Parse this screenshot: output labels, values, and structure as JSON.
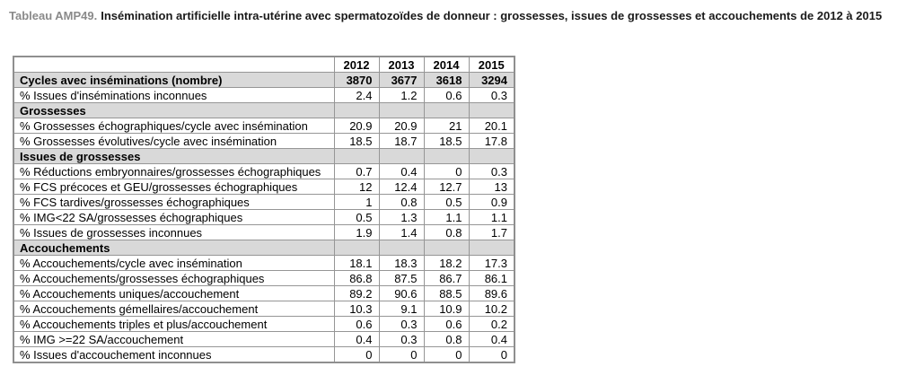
{
  "title": {
    "prefix": "Tableau AMP49.",
    "text": "Insémination artificielle intra-utérine avec spermatozoïdes de donneur : grossesses, issues de grossesses et accouchements de 2012 à 2015"
  },
  "colors": {
    "section_row_bg": "#d9d9d9",
    "table_border": "#969696",
    "caption_prefix": "#8a8a8a",
    "text": "#000000"
  },
  "table": {
    "year_columns": [
      "2012",
      "2013",
      "2014",
      "2015"
    ],
    "rows": [
      {
        "label": "Cycles avec inséminations (nombre)",
        "values": [
          "3870",
          "3677",
          "3618",
          "3294"
        ],
        "type": "total"
      },
      {
        "label": "% Issues d'inséminations inconnues",
        "values": [
          "2.4",
          "1.2",
          "0.6",
          "0.3"
        ],
        "type": "data"
      },
      {
        "label": "Grossesses",
        "values": [
          "",
          "",
          "",
          ""
        ],
        "type": "section"
      },
      {
        "label": "% Grossesses échographiques/cycle avec insémination",
        "values": [
          "20.9",
          "20.9",
          "21",
          "20.1"
        ],
        "type": "data"
      },
      {
        "label": "% Grossesses évolutives/cycle avec insémination",
        "values": [
          "18.5",
          "18.7",
          "18.5",
          "17.8"
        ],
        "type": "data"
      },
      {
        "label": "Issues de grossesses",
        "values": [
          "",
          "",
          "",
          ""
        ],
        "type": "section"
      },
      {
        "label": "% Réductions embryonnaires/grossesses échographiques",
        "values": [
          "0.7",
          "0.4",
          "0",
          "0.3"
        ],
        "type": "data"
      },
      {
        "label": "% FCS précoces et GEU/grossesses échographiques",
        "values": [
          "12",
          "12.4",
          "12.7",
          "13"
        ],
        "type": "data"
      },
      {
        "label": "% FCS tardives/grossesses échographiques",
        "values": [
          "1",
          "0.8",
          "0.5",
          "0.9"
        ],
        "type": "data"
      },
      {
        "label": "% IMG<22 SA/grossesses échographiques",
        "values": [
          "0.5",
          "1.3",
          "1.1",
          "1.1"
        ],
        "type": "data"
      },
      {
        "label": "% Issues de grossesses inconnues",
        "values": [
          "1.9",
          "1.4",
          "0.8",
          "1.7"
        ],
        "type": "data"
      },
      {
        "label": "Accouchements",
        "values": [
          "",
          "",
          "",
          ""
        ],
        "type": "section"
      },
      {
        "label": "% Accouchements/cycle avec insémination",
        "values": [
          "18.1",
          "18.3",
          "18.2",
          "17.3"
        ],
        "type": "data"
      },
      {
        "label": "% Accouchements/grossesses échographiques",
        "values": [
          "86.8",
          "87.5",
          "86.7",
          "86.1"
        ],
        "type": "data"
      },
      {
        "label": "% Accouchements uniques/accouchement",
        "values": [
          "89.2",
          "90.6",
          "88.5",
          "89.6"
        ],
        "type": "data"
      },
      {
        "label": "% Accouchements gémellaires/accouchement",
        "values": [
          "10.3",
          "9.1",
          "10.9",
          "10.2"
        ],
        "type": "data"
      },
      {
        "label": "% Accouchements triples et plus/accouchement",
        "values": [
          "0.6",
          "0.3",
          "0.6",
          "0.2"
        ],
        "type": "data"
      },
      {
        "label": "% IMG >=22 SA/accouchement",
        "values": [
          "0.4",
          "0.3",
          "0.8",
          "0.4"
        ],
        "type": "data"
      },
      {
        "label": "% Issues d'accouchement inconnues",
        "values": [
          "0",
          "0",
          "0",
          "0"
        ],
        "type": "data"
      }
    ]
  },
  "chart_data": {
    "type": "table",
    "title": "Tableau AMP49. Insémination artificielle intra-utérine avec spermatozoïdes de donneur : grossesses, issues de grossesses et accouchements de 2012 à 2015",
    "categories": [
      "2012",
      "2013",
      "2014",
      "2015"
    ],
    "series": [
      {
        "name": "Cycles avec inséminations (nombre)",
        "values": [
          3870,
          3677,
          3618,
          3294
        ]
      },
      {
        "name": "% Issues d'inséminations inconnues",
        "values": [
          2.4,
          1.2,
          0.6,
          0.3
        ]
      },
      {
        "name": "% Grossesses échographiques/cycle avec insémination",
        "values": [
          20.9,
          20.9,
          21,
          20.1
        ]
      },
      {
        "name": "% Grossesses évolutives/cycle avec insémination",
        "values": [
          18.5,
          18.7,
          18.5,
          17.8
        ]
      },
      {
        "name": "% Réductions embryonnaires/grossesses échographiques",
        "values": [
          0.7,
          0.4,
          0,
          0.3
        ]
      },
      {
        "name": "% FCS précoces et GEU/grossesses échographiques",
        "values": [
          12,
          12.4,
          12.7,
          13
        ]
      },
      {
        "name": "% FCS tardives/grossesses échographiques",
        "values": [
          1,
          0.8,
          0.5,
          0.9
        ]
      },
      {
        "name": "% IMG<22 SA/grossesses échographiques",
        "values": [
          0.5,
          1.3,
          1.1,
          1.1
        ]
      },
      {
        "name": "% Issues de grossesses inconnues",
        "values": [
          1.9,
          1.4,
          0.8,
          1.7
        ]
      },
      {
        "name": "% Accouchements/cycle avec insémination",
        "values": [
          18.1,
          18.3,
          18.2,
          17.3
        ]
      },
      {
        "name": "% Accouchements/grossesses échographiques",
        "values": [
          86.8,
          87.5,
          86.7,
          86.1
        ]
      },
      {
        "name": "% Accouchements uniques/accouchement",
        "values": [
          89.2,
          90.6,
          88.5,
          89.6
        ]
      },
      {
        "name": "% Accouchements gémellaires/accouchement",
        "values": [
          10.3,
          9.1,
          10.9,
          10.2
        ]
      },
      {
        "name": "% Accouchements triples et plus/accouchement",
        "values": [
          0.6,
          0.3,
          0.6,
          0.2
        ]
      },
      {
        "name": "% IMG >=22 SA/accouchement",
        "values": [
          0.4,
          0.3,
          0.8,
          0.4
        ]
      },
      {
        "name": "% Issues d'accouchement inconnues",
        "values": [
          0,
          0,
          0,
          0
        ]
      }
    ]
  }
}
